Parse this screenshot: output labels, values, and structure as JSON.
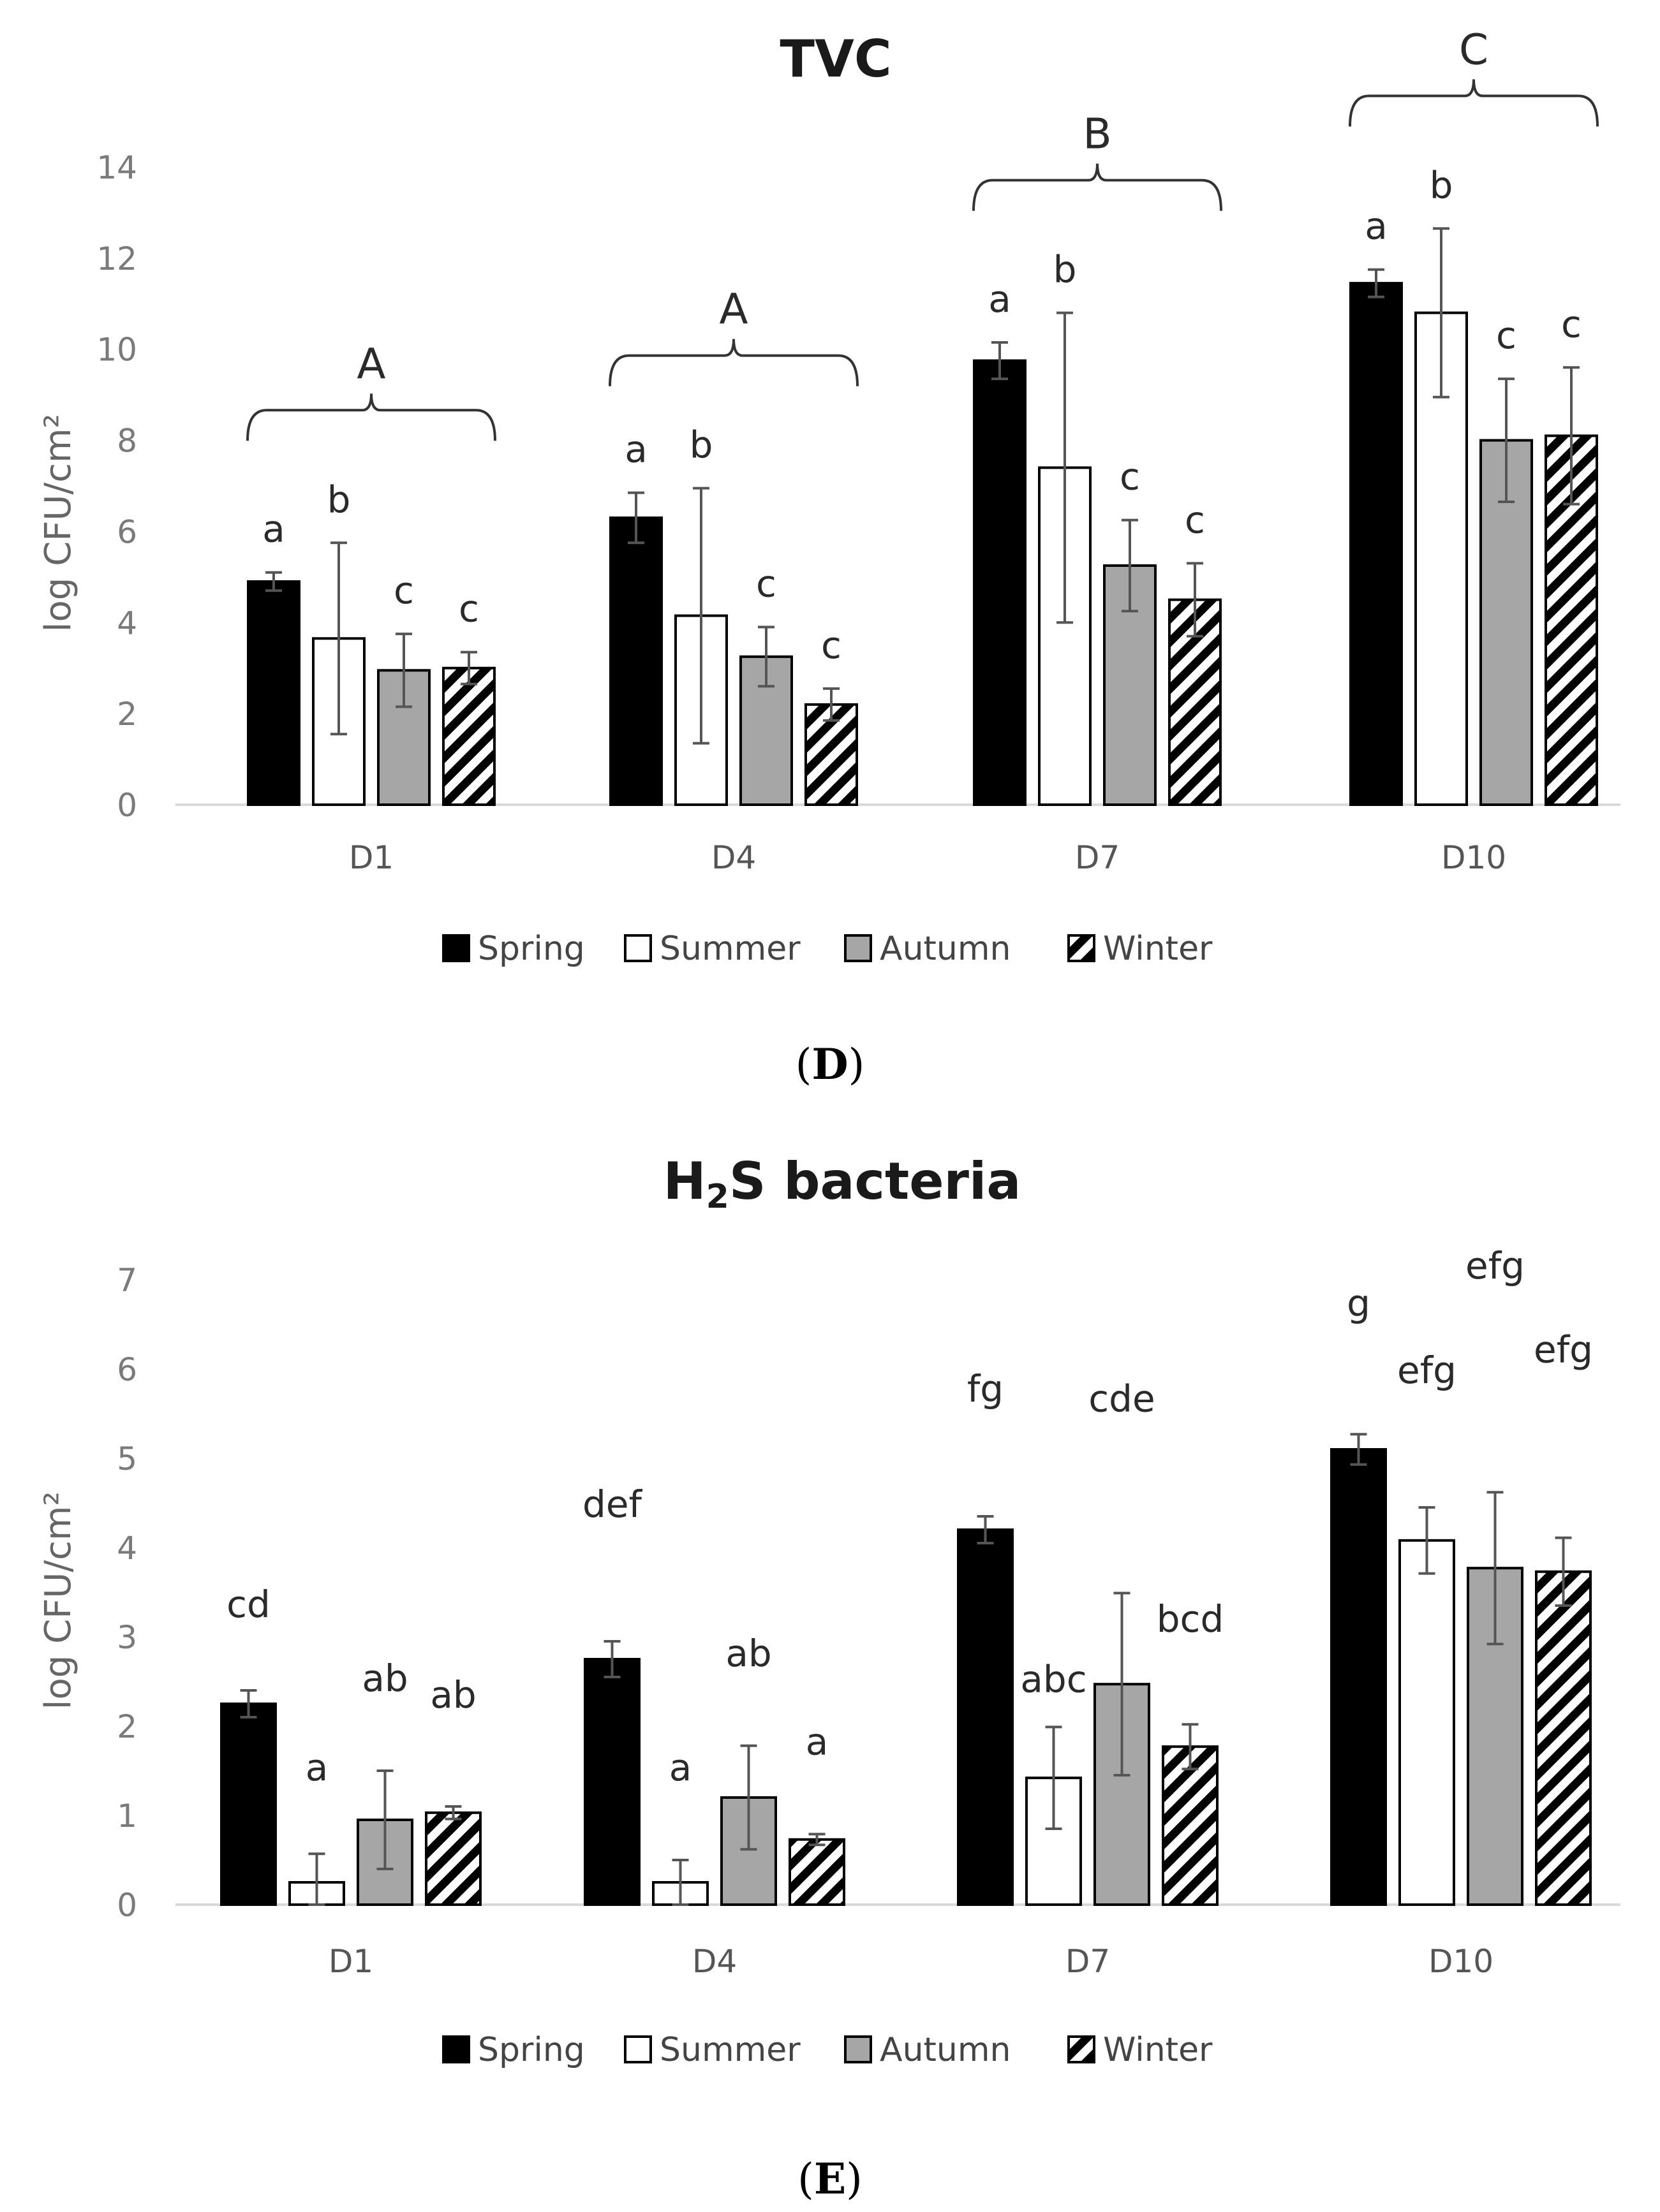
{
  "chart_data": [
    {
      "type": "bar",
      "id": "tvc",
      "title": "TVC",
      "ylabel": "log CFU/cm²",
      "ylim": [
        0,
        14
      ],
      "yticks": [
        0,
        2,
        4,
        6,
        8,
        10,
        12,
        14
      ],
      "categories": [
        "D1",
        "D4",
        "D7",
        "D10"
      ],
      "series": [
        {
          "name": "Spring",
          "values": [
            4.9,
            6.3,
            9.75,
            11.45
          ],
          "errors": [
            0.2,
            0.55,
            0.4,
            0.3
          ],
          "labels": [
            "a",
            "a",
            "a",
            "a"
          ]
        },
        {
          "name": "Summer",
          "values": [
            3.65,
            4.15,
            7.4,
            10.8
          ],
          "errors": [
            2.1,
            2.8,
            3.4,
            1.85
          ],
          "labels": [
            "b",
            "b",
            "b",
            "b"
          ]
        },
        {
          "name": "Autumn",
          "values": [
            2.95,
            3.25,
            5.25,
            8.0
          ],
          "errors": [
            0.8,
            0.65,
            1.0,
            1.35
          ],
          "labels": [
            "c",
            "c",
            "c",
            "c"
          ]
        },
        {
          "name": "Winter",
          "values": [
            3.0,
            2.2,
            4.5,
            8.1
          ],
          "errors": [
            0.35,
            0.35,
            0.8,
            1.5
          ],
          "labels": [
            "c",
            "c",
            "c",
            "c"
          ]
        }
      ],
      "group_labels": [
        "A",
        "A",
        "B",
        "C"
      ],
      "panel_label": "D"
    },
    {
      "type": "bar",
      "id": "h2s",
      "title_main": "H",
      "title_sub": "2",
      "title_rest": "S bacteria",
      "ylabel": "log CFU/cm²",
      "ylim": [
        0,
        7
      ],
      "yticks": [
        0,
        1,
        2,
        3,
        4,
        5,
        6,
        7
      ],
      "categories": [
        "D1",
        "D4",
        "D7",
        "D10"
      ],
      "series": [
        {
          "name": "Spring",
          "values": [
            2.25,
            2.75,
            4.2,
            5.1
          ],
          "errors": [
            0.15,
            0.2,
            0.15,
            0.17
          ],
          "labels": [
            "cd",
            "def",
            "fg",
            "g"
          ]
        },
        {
          "name": "Summer",
          "values": [
            0.25,
            0.25,
            1.42,
            4.08
          ],
          "errors": [
            0.32,
            0.25,
            0.57,
            0.37
          ],
          "labels": [
            "a",
            "a",
            "abc",
            "efg"
          ]
        },
        {
          "name": "Autumn",
          "values": [
            0.95,
            1.2,
            2.47,
            3.77
          ],
          "errors": [
            0.55,
            0.58,
            1.02,
            0.85
          ],
          "labels": [
            "ab",
            "ab",
            "cde",
            "efg"
          ]
        },
        {
          "name": "Winter",
          "values": [
            1.03,
            0.73,
            1.77,
            3.73
          ],
          "errors": [
            0.07,
            0.06,
            0.25,
            0.38
          ],
          "labels": [
            "ab",
            "a",
            "bcd",
            "efg"
          ]
        }
      ],
      "panel_label": "E"
    }
  ],
  "legend": [
    {
      "name": "Spring",
      "fill": "#000000"
    },
    {
      "name": "Summer",
      "fill": "#ffffff"
    },
    {
      "name": "Autumn",
      "fill": "#a6a6a6"
    },
    {
      "name": "Winter",
      "fill": "hatch"
    }
  ],
  "colors": {
    "axis": "#d9d9d9",
    "error_bar": "#555555",
    "bar_outline": "#000000"
  }
}
